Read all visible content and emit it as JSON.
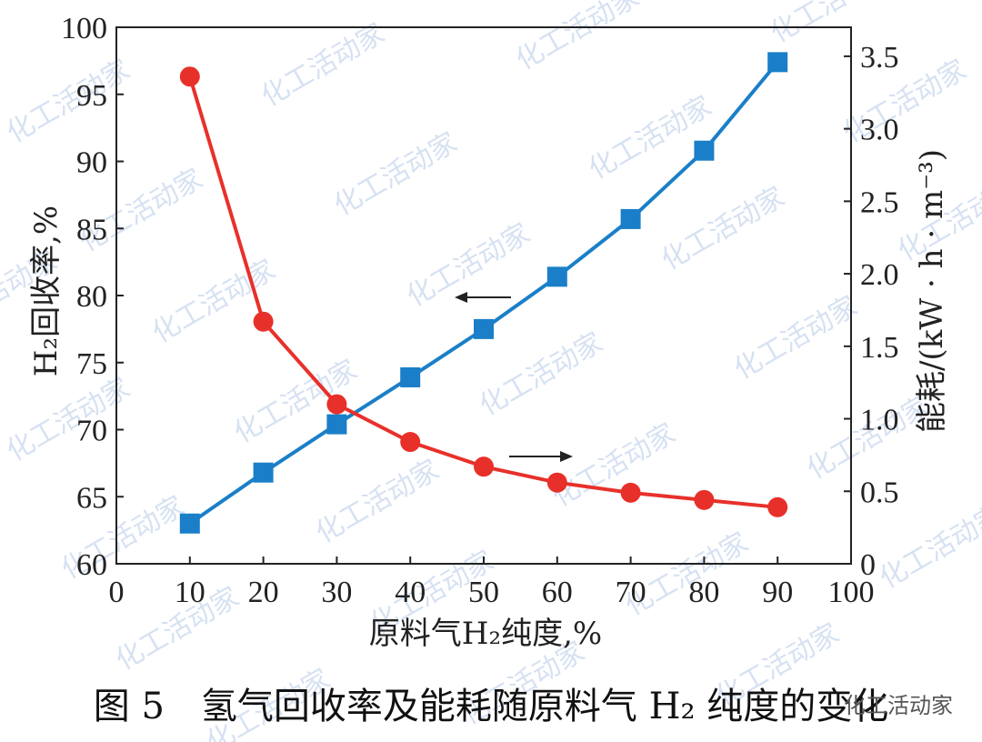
{
  "chart_data": {
    "type": "line",
    "x": [
      10,
      20,
      30,
      40,
      50,
      60,
      70,
      80,
      90
    ],
    "xlabel": "原料气H₂纯度,%",
    "xlim": [
      0,
      100
    ],
    "xticks": [
      0,
      10,
      20,
      30,
      40,
      50,
      60,
      70,
      80,
      90,
      100
    ],
    "ylabel_left": "H₂回收率,%",
    "ylim_left": [
      60,
      100
    ],
    "yticks_left": [
      60,
      65,
      70,
      75,
      80,
      85,
      90,
      95,
      100
    ],
    "ylabel_right": "能耗/(kW · h · m⁻³)",
    "ylim_right": [
      0,
      3.7
    ],
    "yticks_right": [
      0,
      0.5,
      1.0,
      1.5,
      2.0,
      2.5,
      3.0,
      3.5
    ],
    "ytick_labels_right": [
      "0",
      "0.5",
      "1.0",
      "1.5",
      "2.0",
      "2.5",
      "3.0",
      "3.5"
    ],
    "grid": false,
    "series": [
      {
        "axis": "left",
        "color": "#1a7fc8",
        "marker": "square",
        "values": [
          63.0,
          66.8,
          70.4,
          73.9,
          77.5,
          81.4,
          85.7,
          90.8,
          97.4
        ]
      },
      {
        "axis": "right",
        "color": "#e8302a",
        "marker": "circle",
        "values": [
          3.36,
          1.67,
          1.1,
          0.84,
          0.67,
          0.56,
          0.49,
          0.44,
          0.39
        ]
      }
    ]
  },
  "caption": "图 5　氢气回收率及能耗随原料气 H₂ 纯度的变化",
  "watermark": "化工活动家",
  "brand_label": "化工活动家"
}
